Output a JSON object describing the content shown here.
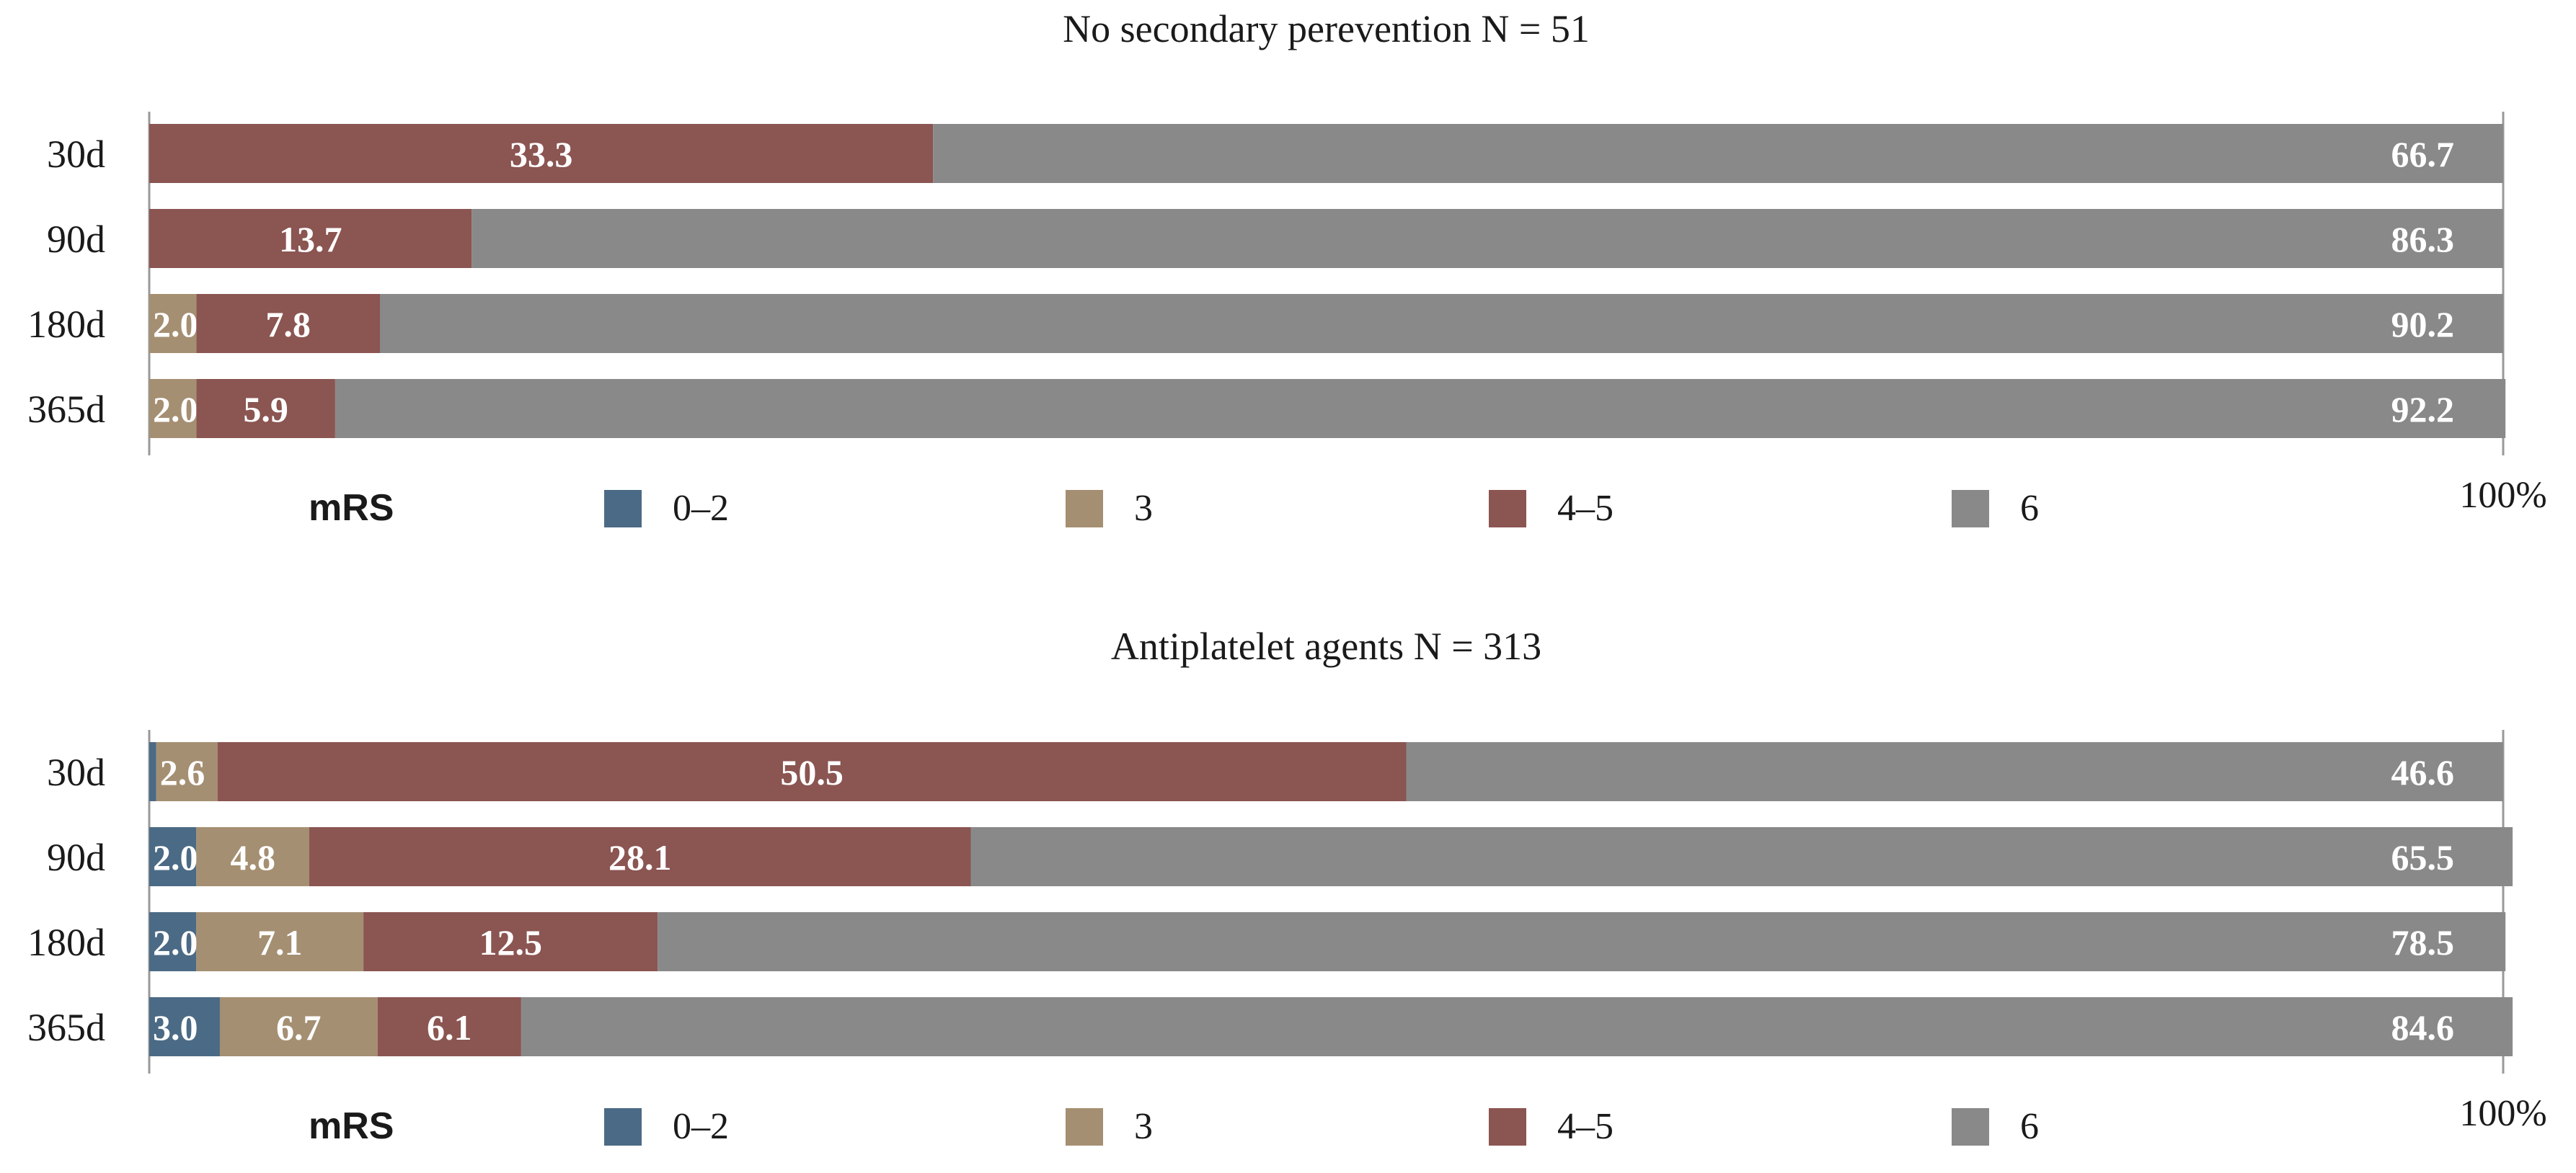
{
  "colors": {
    "mrs_0_2": "#4b6a85",
    "mrs_3": "#a58f72",
    "mrs_4_5": "#8b5552",
    "mrs_6": "#898989",
    "axis": "#999999",
    "text": "#1a1a1a",
    "label_text": "#ffffff"
  },
  "chart_data": [
    {
      "type": "bar",
      "orientation": "horizontal",
      "stacked": true,
      "title": "No secondary perevention N = 51",
      "categories": [
        "30d",
        "90d",
        "180d",
        "365d"
      ],
      "series": [
        {
          "name": "0–2",
          "values": [
            0,
            0,
            0,
            0
          ],
          "labels": [
            "",
            "",
            "",
            ""
          ]
        },
        {
          "name": "3",
          "values": [
            0,
            0,
            2.0,
            2.0
          ],
          "labels": [
            "",
            "",
            "2.0",
            "2.0"
          ]
        },
        {
          "name": "4–5",
          "values": [
            33.3,
            13.7,
            7.8,
            5.9
          ],
          "labels": [
            "33.3",
            "13.7",
            "7.8",
            "5.9"
          ]
        },
        {
          "name": "6",
          "values": [
            66.7,
            86.3,
            90.2,
            92.2
          ],
          "labels": [
            "66.7",
            "86.3",
            "90.2",
            "92.2"
          ]
        }
      ],
      "xlim": [
        0,
        100
      ],
      "x_end_label": "100%",
      "legend_title": "mRS",
      "legend_position": "bottom"
    },
    {
      "type": "bar",
      "orientation": "horizontal",
      "stacked": true,
      "title": "Antiplatelet agents N = 313",
      "categories": [
        "30d",
        "90d",
        "180d",
        "365d"
      ],
      "series": [
        {
          "name": "0–2",
          "values": [
            0.3,
            2.0,
            2.0,
            3.0
          ],
          "labels": [
            "",
            "2.0",
            "2.0",
            "3.0"
          ]
        },
        {
          "name": "3",
          "values": [
            2.6,
            4.8,
            7.1,
            6.7
          ],
          "labels": [
            "2.6",
            "4.8",
            "7.1",
            "6.7"
          ]
        },
        {
          "name": "4–5",
          "values": [
            50.5,
            28.1,
            12.5,
            6.1
          ],
          "labels": [
            "50.5",
            "28.1",
            "12.5",
            "6.1"
          ]
        },
        {
          "name": "6",
          "values": [
            46.6,
            65.5,
            78.5,
            84.6
          ],
          "labels": [
            "46.6",
            "65.5",
            "78.5",
            "84.6"
          ]
        }
      ],
      "xlim": [
        0,
        100
      ],
      "x_end_label": "100%",
      "legend_title": "mRS",
      "legend_position": "bottom"
    }
  ]
}
